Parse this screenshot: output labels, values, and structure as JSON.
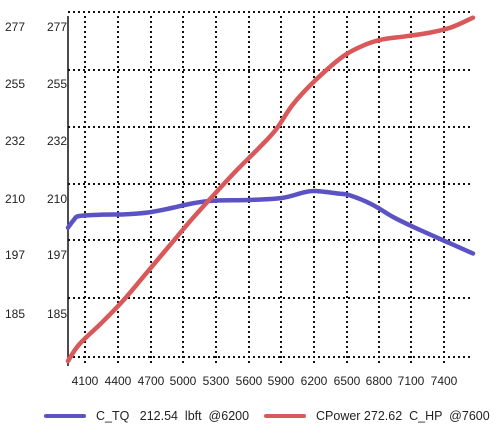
{
  "chart_data": {
    "type": "line",
    "title": "",
    "xlabel": "",
    "ylabel": "",
    "grid": true,
    "legend_placement": "bottom",
    "x_ticks": [
      4100,
      4400,
      4700,
      5000,
      5300,
      5600,
      5900,
      6200,
      6500,
      6800,
      7100,
      7400
    ],
    "y_ticks": [
      185,
      197,
      210,
      232,
      255,
      277
    ],
    "y_tick_labels_outer": [
      "277",
      "255",
      "232",
      "210",
      "197",
      "185"
    ],
    "y_tick_labels_inner": [
      "277",
      "255",
      "232",
      "210",
      "197",
      "185"
    ],
    "series": [
      {
        "name": "C_TQ",
        "legend_text": "C_TQ   212.54  lbft  @6200",
        "color": "#5b52c4",
        "points": [
          [
            4000,
            8.3
          ],
          [
            4050,
            8.75
          ],
          [
            4100,
            9.0
          ],
          [
            4300,
            9.08
          ],
          [
            4500,
            9.1
          ],
          [
            4700,
            9.2
          ],
          [
            4900,
            9.45
          ],
          [
            5100,
            9.75
          ],
          [
            5300,
            9.92
          ],
          [
            5600,
            9.96
          ],
          [
            5900,
            10.08
          ],
          [
            6100,
            10.42
          ],
          [
            6200,
            10.5
          ],
          [
            6400,
            10.35
          ],
          [
            6500,
            10.25
          ],
          [
            6700,
            9.7
          ],
          [
            6900,
            8.9
          ],
          [
            7100,
            8.25
          ],
          [
            7400,
            7.35
          ],
          [
            7600,
            6.75
          ]
        ]
      },
      {
        "name": "CPower",
        "legend_text": "CPower 272.62  C_HP  @7600",
        "color": "#d9585a",
        "points": [
          [
            4000,
            0.3
          ],
          [
            4100,
            1.3
          ],
          [
            4300,
            2.6
          ],
          [
            4500,
            4.0
          ],
          [
            4700,
            5.6
          ],
          [
            4900,
            7.2
          ],
          [
            5100,
            8.8
          ],
          [
            5300,
            10.3
          ],
          [
            5500,
            11.75
          ],
          [
            5700,
            13.1
          ],
          [
            5850,
            14.2
          ],
          [
            6000,
            15.7
          ],
          [
            6200,
            17.15
          ],
          [
            6450,
            18.6
          ],
          [
            6650,
            19.3
          ],
          [
            6800,
            19.6
          ],
          [
            7000,
            19.78
          ],
          [
            7200,
            19.98
          ],
          [
            7400,
            20.3
          ],
          [
            7600,
            20.9
          ]
        ]
      }
    ]
  }
}
